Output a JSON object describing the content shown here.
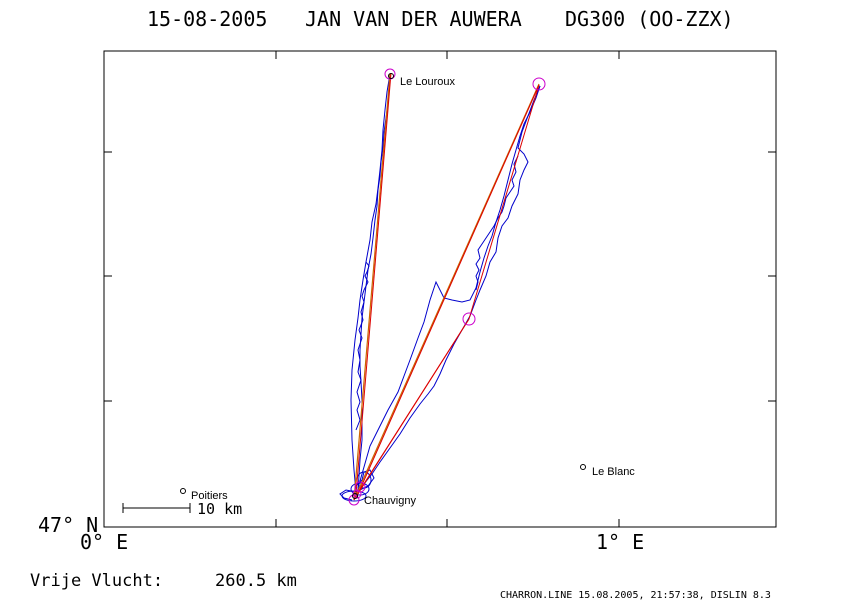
{
  "title": {
    "date": "15-08-2005",
    "pilot": "JAN VAN DER AUWERA",
    "glider": "DG300 (OO-ZZX)"
  },
  "axes": {
    "y_label": "47° N",
    "x_labels": [
      "0° E",
      "1° E"
    ]
  },
  "places": [
    {
      "name": "Le Louroux"
    },
    {
      "name": "Le Blanc"
    },
    {
      "name": "Poitiers"
    },
    {
      "name": "Chauvigny"
    }
  ],
  "scale_bar": {
    "label": "10 km"
  },
  "footer": {
    "distance_label": "Vrije Vlucht:",
    "distance_value": "260.5 km",
    "credit": "CHARRON.LINE 15.08.2005, 21:57:38, DISLIN 8.3"
  },
  "colors": {
    "track": "#0000cc",
    "task_line": "#cc6600",
    "optimised_line": "#dd0000",
    "turnpoint": "#cc00cc",
    "frame": "#000000"
  }
}
